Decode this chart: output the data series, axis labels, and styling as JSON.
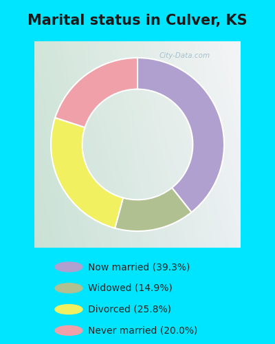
{
  "title": "Marital status in Culver, KS",
  "title_fontsize": 15,
  "title_color": "#1a1a1a",
  "bg_cyan": "#00e5ff",
  "chart_bg_color": "#d0e8d8",
  "slices": [
    {
      "label": "Now married (39.3%)",
      "value": 39.3,
      "color": "#b0a0d0"
    },
    {
      "label": "Widowed (14.9%)",
      "value": 14.9,
      "color": "#b0c090"
    },
    {
      "label": "Divorced (25.8%)",
      "value": 25.8,
      "color": "#f0f060"
    },
    {
      "label": "Never married (20.0%)",
      "value": 20.0,
      "color": "#f0a0a8"
    }
  ],
  "legend_labels": [
    "Now married (39.3%)",
    "Widowed (14.9%)",
    "Divorced (25.8%)",
    "Never married (20.0%)"
  ],
  "legend_colors": [
    "#b0a0d0",
    "#b0c090",
    "#f0f060",
    "#f0a0a8"
  ],
  "watermark": "City-Data.com",
  "start_angle": 90,
  "donut_width": 0.38
}
